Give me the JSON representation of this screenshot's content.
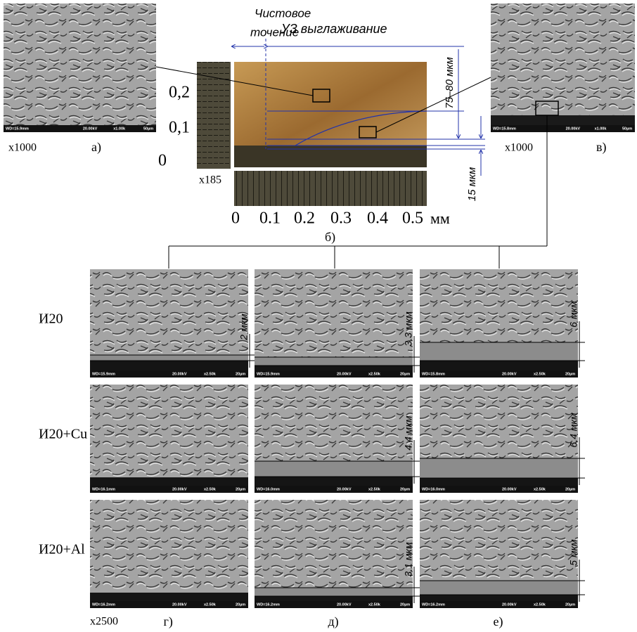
{
  "panel_a": {
    "label": "а)",
    "magnification": "x1000",
    "footer": [
      "WD=15.9mm",
      "20.00kV",
      "x1.00k",
      "50µm"
    ]
  },
  "panel_b": {
    "label": "б)",
    "magnification": "x185",
    "finish_turning": [
      "Чистовое",
      "точение"
    ],
    "ultrasonic_burnishing": "УЗ выглаживание",
    "depth_label": "75–80 мкм",
    "layer_label": "15 мкм",
    "y_scale": [
      "0,2",
      "0,1",
      "0"
    ],
    "x_scale": [
      "0",
      "0.1",
      "0.2",
      "0.3",
      "0.4",
      "0.5"
    ],
    "x_unit": "мм"
  },
  "panel_v": {
    "label": "в)",
    "magnification": "x1000",
    "footer": [
      "WD=15.8mm",
      "20.00kV",
      "x1.00k",
      "50µm"
    ]
  },
  "grid": {
    "magnification": "x2500",
    "rows": [
      "И20",
      "И20+Cu",
      "И20+Al"
    ],
    "columns": [
      "г)",
      "д)",
      "е)"
    ],
    "cells": [
      [
        {
          "footer": [
            "WD=15.9mm",
            "20.00kV",
            "x2.50k",
            "20µm"
          ],
          "thickness": "2 мкм"
        },
        {
          "footer": [
            "WD=15.9mm",
            "20.00kV",
            "x2.50k",
            "20µm"
          ],
          "thickness": "3.3 мкм"
        },
        {
          "footer": [
            "WD=15.8mm",
            "20.00kV",
            "x2.50k",
            "20µm"
          ],
          "thickness": "6 мкм"
        }
      ],
      [
        {
          "footer": [
            "WD=16.1mm",
            "20.00kV",
            "x2.50k",
            "20µm"
          ]
        },
        {
          "footer": [
            "WD=16.0mm",
            "20.00kV",
            "x2.50k",
            "20µm"
          ],
          "thickness": "4.4 мкм"
        },
        {
          "footer": [
            "WD=16.0mm",
            "20.00kV",
            "x2.50k",
            "20µm"
          ],
          "thickness": "6.4 мкм"
        }
      ],
      [
        {
          "footer": [
            "WD=16.2mm",
            "20.00kV",
            "x2.50k",
            "20µm"
          ]
        },
        {
          "footer": [
            "WD=16.2mm",
            "20.00kV",
            "x2.50k",
            "20µm"
          ],
          "thickness": "3.1 мкм"
        },
        {
          "footer": [
            "WD=16.2mm",
            "20.00kV",
            "x2.50k",
            "20µm"
          ],
          "thickness": "5 мкм"
        }
      ]
    ]
  }
}
